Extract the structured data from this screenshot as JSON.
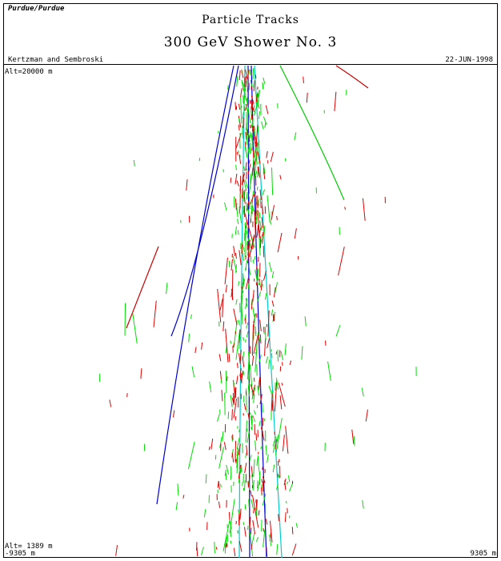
{
  "header": {
    "origin": "Purdue/Purdue",
    "title": "Particle Tracks",
    "subtitle": "300 GeV Shower No. 3",
    "authors": "Kertzman and Sembroski",
    "date": "22-JUN-1998"
  },
  "plot": {
    "top_altitude": "Alt=20000 m",
    "bottom_altitude": "Alt= 1389 m",
    "x_min": "-9305 m",
    "x_max": "9305 m"
  }
}
